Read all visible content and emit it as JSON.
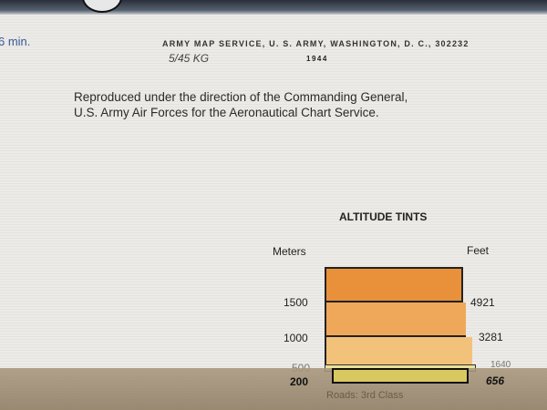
{
  "header": {
    "minutes": "6 min.",
    "publisher": "ARMY MAP SERVICE, U. S. ARMY, WASHINGTON, D. C., 302232",
    "stamp": "5/45 KG",
    "year": "1944"
  },
  "reproduction_note": [
    "Reproduced under the direction of the Commanding General,",
    "U.S. Army Air Forces for the Aeronautical Chart Service."
  ],
  "legend": {
    "title": "ALTITUDE TINTS",
    "meters_label": "Meters",
    "feet_label": "Feet",
    "meters": [
      "1500",
      "1000",
      "500",
      "200"
    ],
    "feet": [
      "4921",
      "3281",
      "1640",
      "656"
    ],
    "tint_colors": [
      "#e8913a",
      "#efa85a",
      "#f3c27a",
      "#e9e29a",
      "#d8c860"
    ]
  },
  "footer": {
    "roads": "Roads: 3rd Class"
  }
}
